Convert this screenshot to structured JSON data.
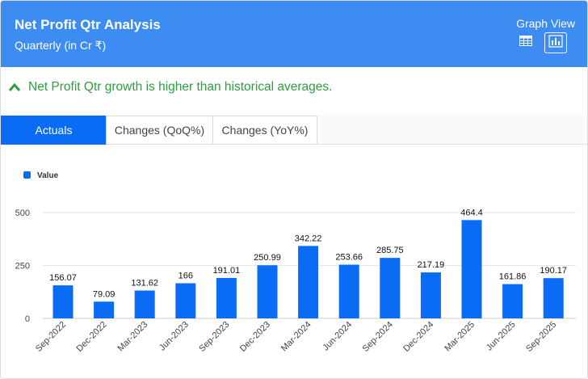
{
  "header": {
    "title": "Net Profit Qtr Analysis",
    "subtitle": "Quarterly (in Cr ₹)",
    "view_label": "Graph View"
  },
  "icons": {
    "table": "table-icon",
    "graph": "bar-chart-icon",
    "insight": "chevron-up-icon"
  },
  "insight": {
    "text": "Net Profit Qtr growth is higher than historical averages."
  },
  "tabs": [
    {
      "label": "Actuals",
      "active": true
    },
    {
      "label": "Changes (QoQ%)",
      "active": false
    },
    {
      "label": "Changes (YoY%)",
      "active": false
    }
  ],
  "colors": {
    "header": "#3c8cf2",
    "bar": "#0a6cf5",
    "insight": "#2e9e3e"
  },
  "chart_data": {
    "type": "bar",
    "legend": "Value",
    "categories": [
      "Sep-2022",
      "Dec-2022",
      "Mar-2023",
      "Jun-2023",
      "Sep-2023",
      "Dec-2023",
      "Mar-2024",
      "Jun-2024",
      "Sep-2024",
      "Dec-2024",
      "Mar-2025",
      "Jun-2025",
      "Sep-2025"
    ],
    "values": [
      156.07,
      79.09,
      131.62,
      166,
      191.01,
      250.99,
      342.22,
      253.66,
      285.75,
      217.19,
      464.4,
      161.86,
      190.17
    ],
    "value_labels": [
      "156.07",
      "79.09",
      "131.62",
      "166",
      "191.01",
      "250.99",
      "342.22",
      "253.66",
      "285.75",
      "217.19",
      "464.4",
      "161.86",
      "190.17"
    ],
    "yticks": [
      0,
      250,
      500
    ],
    "ylim": [
      0,
      500
    ],
    "grid": true
  }
}
